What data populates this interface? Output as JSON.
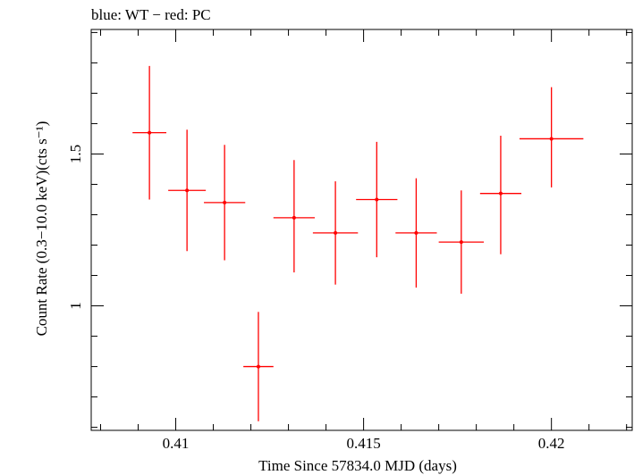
{
  "chart_data": {
    "type": "scatter",
    "title": "blue: WT − red: PC",
    "xlabel": "Time Since 57834.0 MJD (days)",
    "ylabel": "Count Rate (0.3−10.0 keV)(cts s⁻¹)",
    "xlim": [
      0.40775,
      0.42215
    ],
    "ylim": [
      0.59,
      1.91
    ],
    "xticks": [
      {
        "value": 0.41,
        "label": "0.41"
      },
      {
        "value": 0.415,
        "label": "0.415"
      },
      {
        "value": 0.42,
        "label": "0.42"
      }
    ],
    "yticks": [
      {
        "value": 1.0,
        "label": "1"
      },
      {
        "value": 1.5,
        "label": "1.5"
      }
    ],
    "grid": false,
    "colors": {
      "PC": "#ff0000",
      "WT": "#0000ff"
    },
    "series": [
      {
        "name": "PC",
        "points": [
          {
            "x": 0.4093,
            "xerr": 0.00045,
            "y": 1.57,
            "ylo": 1.35,
            "yhi": 1.79
          },
          {
            "x": 0.4103,
            "xerr": 0.0005,
            "y": 1.38,
            "ylo": 1.18,
            "yhi": 1.58
          },
          {
            "x": 0.4113,
            "xerr": 0.00055,
            "y": 1.34,
            "ylo": 1.15,
            "yhi": 1.53
          },
          {
            "x": 0.4122,
            "xerr": 0.0004,
            "y": 0.8,
            "ylo": 0.62,
            "yhi": 0.98
          },
          {
            "x": 0.41315,
            "xerr": 0.00055,
            "y": 1.29,
            "ylo": 1.11,
            "yhi": 1.48
          },
          {
            "x": 0.41425,
            "xerr": 0.0006,
            "y": 1.24,
            "ylo": 1.07,
            "yhi": 1.41
          },
          {
            "x": 0.41535,
            "xerr": 0.00055,
            "y": 1.35,
            "ylo": 1.16,
            "yhi": 1.54
          },
          {
            "x": 0.4164,
            "xerr": 0.00055,
            "y": 1.24,
            "ylo": 1.06,
            "yhi": 1.42
          },
          {
            "x": 0.4176,
            "xerr": 0.0006,
            "y": 1.21,
            "ylo": 1.04,
            "yhi": 1.38
          },
          {
            "x": 0.41865,
            "xerr": 0.00055,
            "y": 1.37,
            "ylo": 1.17,
            "yhi": 1.56
          },
          {
            "x": 0.42,
            "xerr": 0.00085,
            "y": 1.55,
            "ylo": 1.39,
            "yhi": 1.72
          }
        ]
      }
    ]
  }
}
